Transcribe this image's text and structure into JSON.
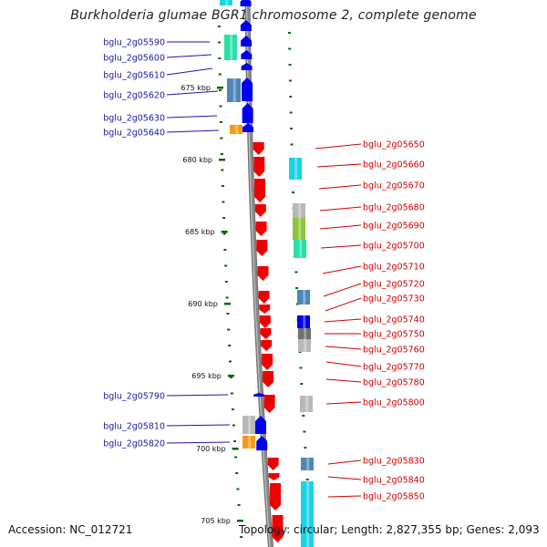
{
  "title": "Burkholderia glumae BGR1 chromosome 2, complete genome",
  "footer": {
    "accession": "Accession: NC_012721",
    "topology": "Topology: circular; Length: 2,827,355 bp; Genes: 2,093"
  },
  "colors": {
    "backbone": "#8a8a8a",
    "minus_strand_gene": "#0000ee",
    "plus_strand_gene": "#ee0000",
    "left_label": "#1a1aa8",
    "right_label": "#cc0000",
    "tick_mark": "#006400",
    "cog_teal": "#29e0a8",
    "cog_cyan": "#19d3e6",
    "cog_steel": "#4f86b8",
    "cog_gray": "#b8b8b8",
    "cog_orange": "#f59a14",
    "cog_olive": "#8bc63c",
    "cog_darkgray": "#707070"
  },
  "ticks": [
    "675 kbp",
    "680 kbp",
    "685 kbp",
    "690 kbp",
    "695 kbp",
    "700 kbp",
    "705 kbp"
  ],
  "left_genes": [
    "bglu_2g05590",
    "bglu_2g05600",
    "bglu_2g05610",
    "bglu_2g05620",
    "bglu_2g05630",
    "bglu_2g05640",
    "bglu_2g05790",
    "bglu_2g05810",
    "bglu_2g05820"
  ],
  "right_genes": [
    "bglu_2g05650",
    "bglu_2g05660",
    "bglu_2g05670",
    "bglu_2g05680",
    "bglu_2g05690",
    "bglu_2g05700",
    "bglu_2g05710",
    "bglu_2g05720",
    "bglu_2g05730",
    "bglu_2g05740",
    "bglu_2g05750",
    "bglu_2g05760",
    "bglu_2g05770",
    "bglu_2g05780",
    "bglu_2g05800",
    "bglu_2g05830",
    "bglu_2g05840",
    "bglu_2g05850"
  ]
}
